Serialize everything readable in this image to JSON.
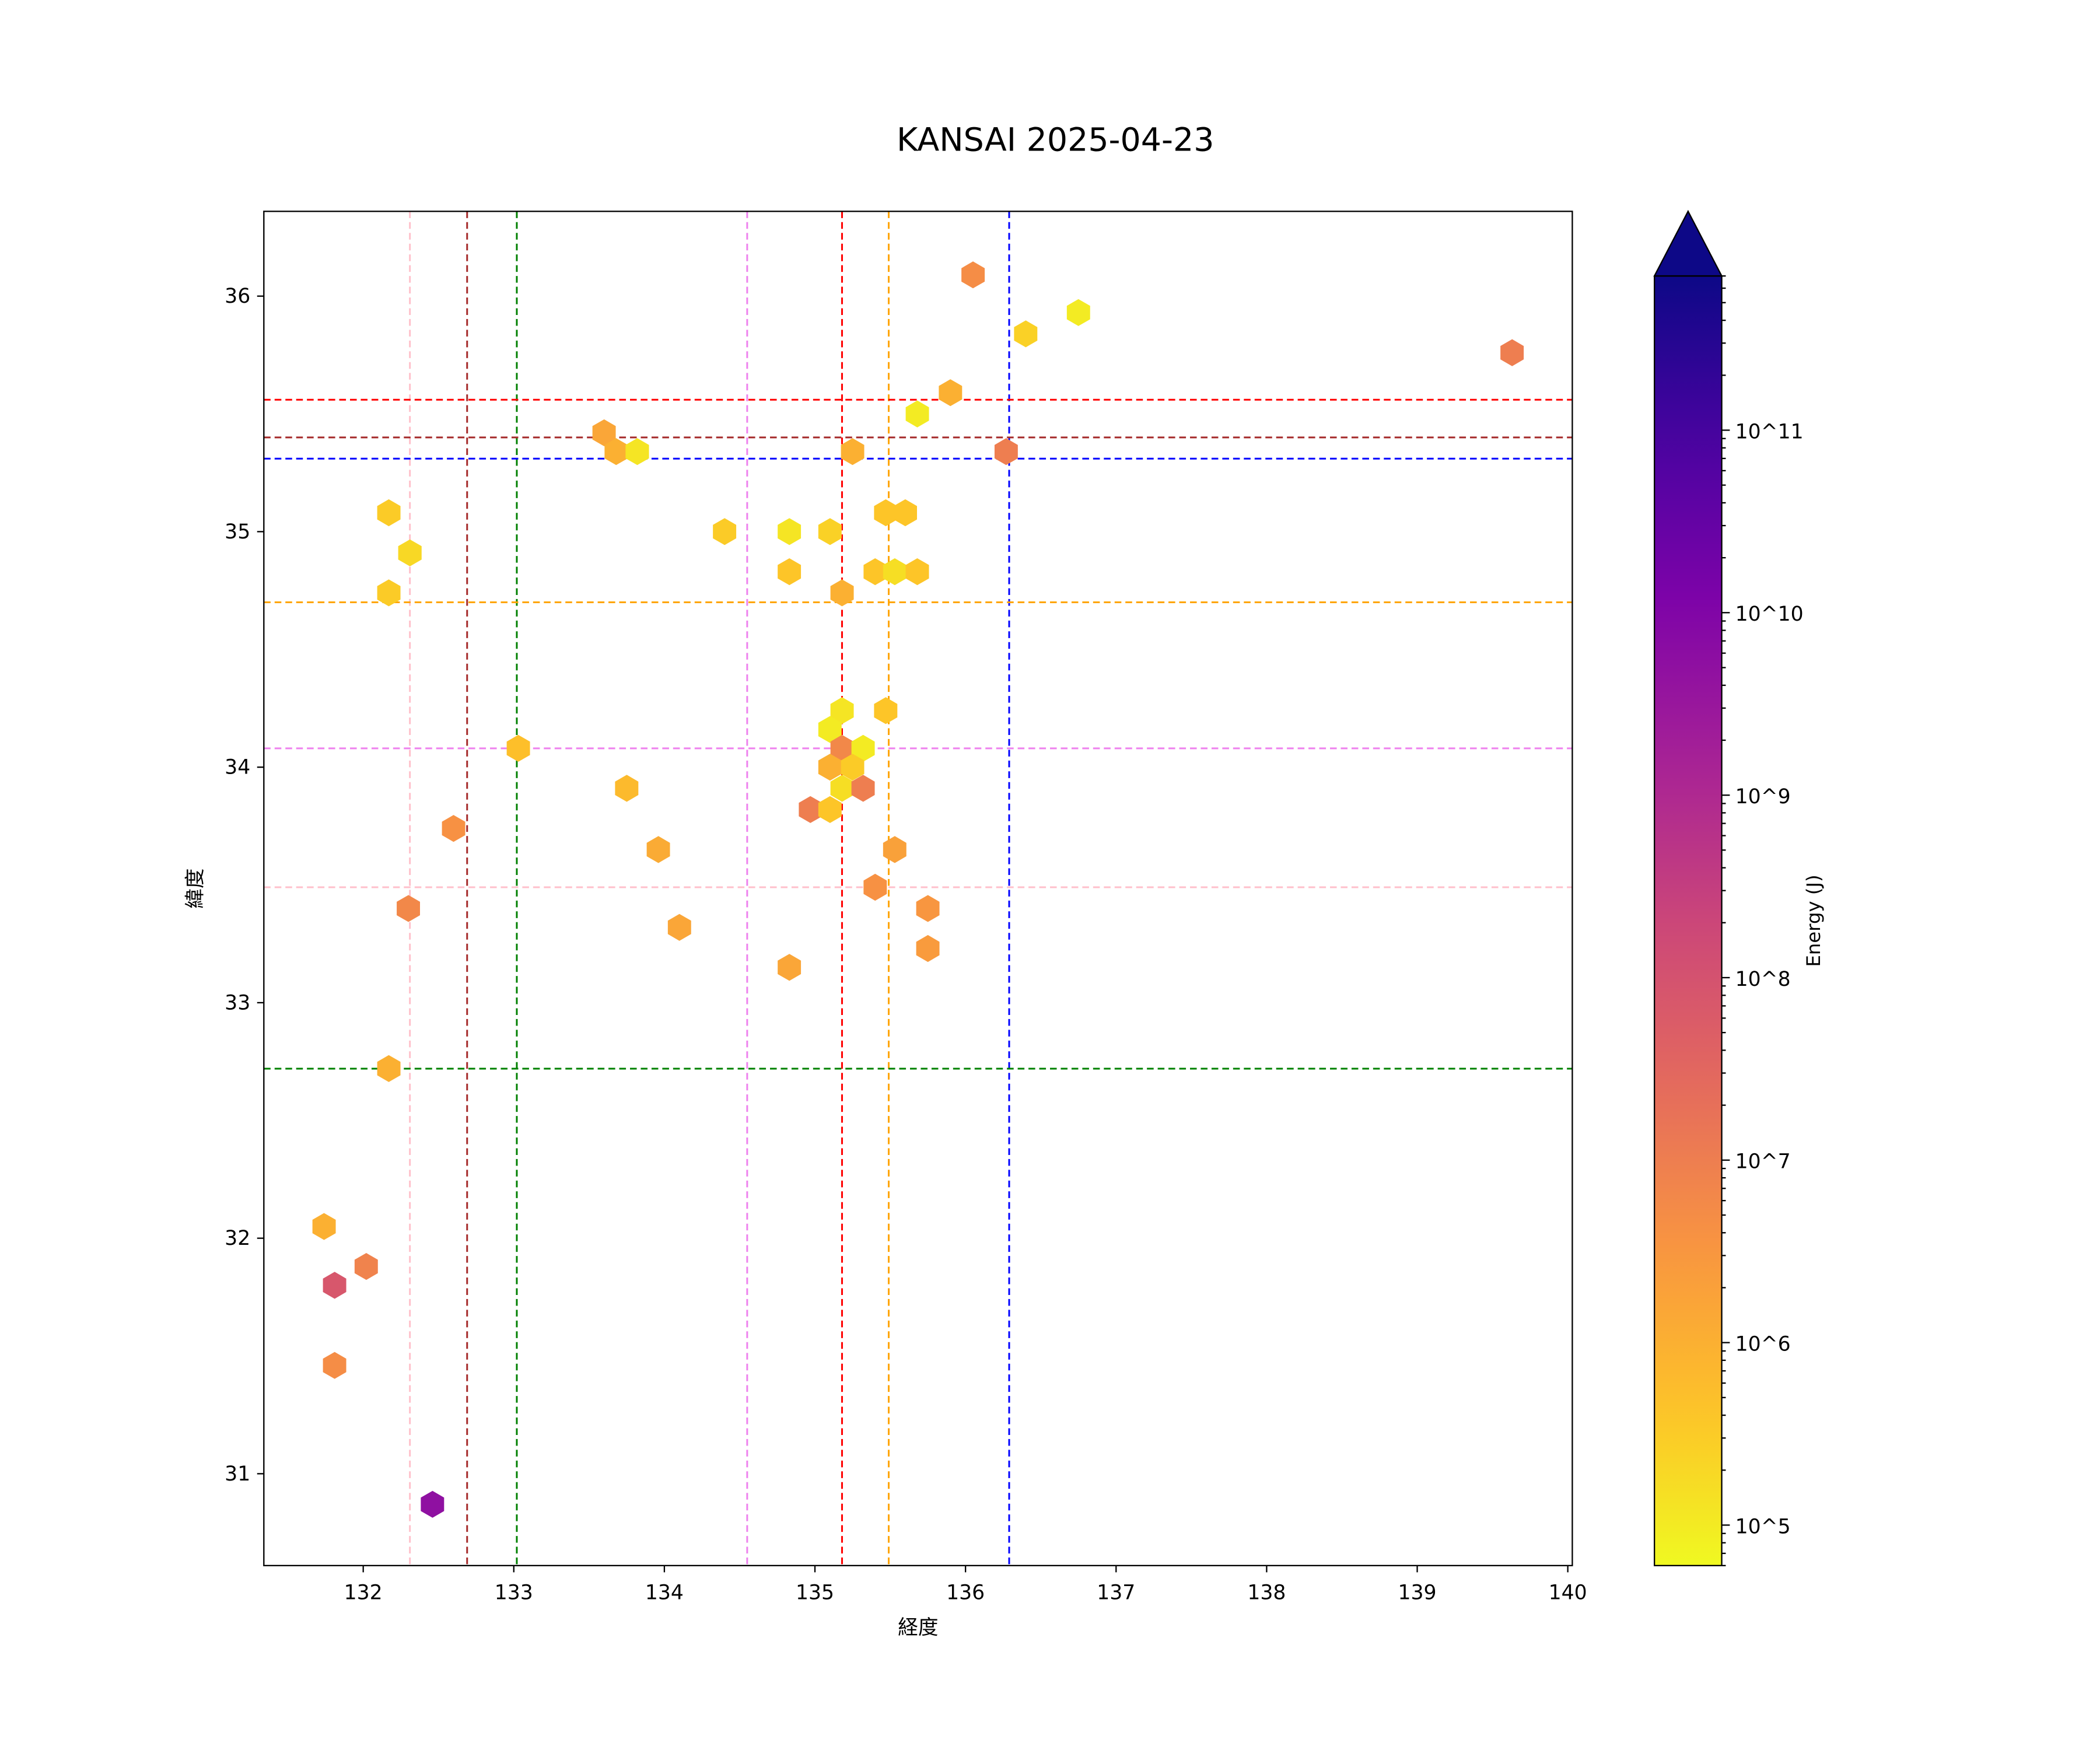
{
  "chart_data": {
    "type": "hexbin",
    "title": "KANSAI 2025-04-23",
    "xlabel": "経度",
    "ylabel": "緯度",
    "xlim": [
      131.34,
      140.03
    ],
    "ylim": [
      30.61,
      36.36
    ],
    "xticks": [
      132,
      133,
      134,
      135,
      136,
      137,
      138,
      139,
      140
    ],
    "yticks": [
      31,
      32,
      33,
      34,
      35,
      36
    ],
    "grid": false,
    "colorbar": {
      "label": "Energy (J)",
      "scale": "log",
      "colormap": "plasma",
      "range": [
        60000,
        700000000000
      ],
      "extend": "max",
      "ticks": [
        {
          "v": 5,
          "label": "10^5"
        },
        {
          "v": 6,
          "label": "10^6"
        },
        {
          "v": 7,
          "label": "10^7"
        },
        {
          "v": 8,
          "label": "10^8"
        },
        {
          "v": 9,
          "label": "10^9"
        },
        {
          "v": 10,
          "label": "10^10"
        },
        {
          "v": 11,
          "label": "10^11"
        }
      ]
    },
    "vlines": [
      {
        "x": 132.31,
        "color": "#ffc0cb"
      },
      {
        "x": 132.69,
        "color": "#a52a2a"
      },
      {
        "x": 133.02,
        "color": "#008000"
      },
      {
        "x": 134.55,
        "color": "#ee82ee"
      },
      {
        "x": 135.18,
        "color": "#ff0000"
      },
      {
        "x": 135.49,
        "color": "#ffa500"
      },
      {
        "x": 136.29,
        "color": "#0000ff"
      }
    ],
    "hlines": [
      {
        "y": 35.56,
        "color": "#ff0000"
      },
      {
        "y": 35.4,
        "color": "#a52a2a"
      },
      {
        "y": 35.31,
        "color": "#0000ff"
      },
      {
        "y": 34.7,
        "color": "#ffa500"
      },
      {
        "y": 34.08,
        "color": "#ee82ee"
      },
      {
        "y": 33.49,
        "color": "#ffc0cb"
      },
      {
        "y": 32.72,
        "color": "#008000"
      }
    ],
    "points_lon_lat_log10energy": [
      [
        136.05,
        36.09,
        6.7
      ],
      [
        136.4,
        35.84,
        5.4
      ],
      [
        136.75,
        35.93,
        5.0
      ],
      [
        139.63,
        35.76,
        7.0
      ],
      [
        135.9,
        35.59,
        6.0
      ],
      [
        135.68,
        35.5,
        5.0
      ],
      [
        133.6,
        35.42,
        6.2
      ],
      [
        133.68,
        35.34,
        6.0
      ],
      [
        133.82,
        35.34,
        5.1
      ],
      [
        135.25,
        35.34,
        6.0
      ],
      [
        136.27,
        35.34,
        7.0
      ],
      [
        132.17,
        35.08,
        5.5
      ],
      [
        132.31,
        34.91,
        5.3
      ],
      [
        132.17,
        34.74,
        5.5
      ],
      [
        134.4,
        35.0,
        5.5
      ],
      [
        134.83,
        35.0,
        5.1
      ],
      [
        135.1,
        35.0,
        5.4
      ],
      [
        135.47,
        35.08,
        5.6
      ],
      [
        135.6,
        35.08,
        5.6
      ],
      [
        134.83,
        34.83,
        5.6
      ],
      [
        135.4,
        34.83,
        5.6
      ],
      [
        135.53,
        34.83,
        5.2
      ],
      [
        135.68,
        34.83,
        5.6
      ],
      [
        135.18,
        34.74,
        6.0
      ],
      [
        135.18,
        34.24,
        5.1
      ],
      [
        135.47,
        34.24,
        5.6
      ],
      [
        135.1,
        34.16,
        5.0
      ],
      [
        135.18,
        34.08,
        6.8
      ],
      [
        135.32,
        34.08,
        5.0
      ],
      [
        133.03,
        34.08,
        5.7
      ],
      [
        135.1,
        34.0,
        6.0
      ],
      [
        135.25,
        34.0,
        5.5
      ],
      [
        135.18,
        33.91,
        5.2
      ],
      [
        135.32,
        33.91,
        7.0
      ],
      [
        133.75,
        33.91,
        5.8
      ],
      [
        134.97,
        33.82,
        7.0
      ],
      [
        135.1,
        33.82,
        5.6
      ],
      [
        132.6,
        33.74,
        6.6
      ],
      [
        133.96,
        33.65,
        6.1
      ],
      [
        135.53,
        33.65,
        6.3
      ],
      [
        135.4,
        33.49,
        6.6
      ],
      [
        132.3,
        33.4,
        6.8
      ],
      [
        135.75,
        33.4,
        6.5
      ],
      [
        134.1,
        33.32,
        6.2
      ],
      [
        135.75,
        33.23,
        6.4
      ],
      [
        134.83,
        33.15,
        6.2
      ],
      [
        132.17,
        32.72,
        6.0
      ],
      [
        131.74,
        32.05,
        6.0
      ],
      [
        132.02,
        31.88,
        6.9
      ],
      [
        131.81,
        31.8,
        7.9
      ],
      [
        131.81,
        31.46,
        6.7
      ],
      [
        132.46,
        30.87,
        9.7
      ]
    ]
  }
}
